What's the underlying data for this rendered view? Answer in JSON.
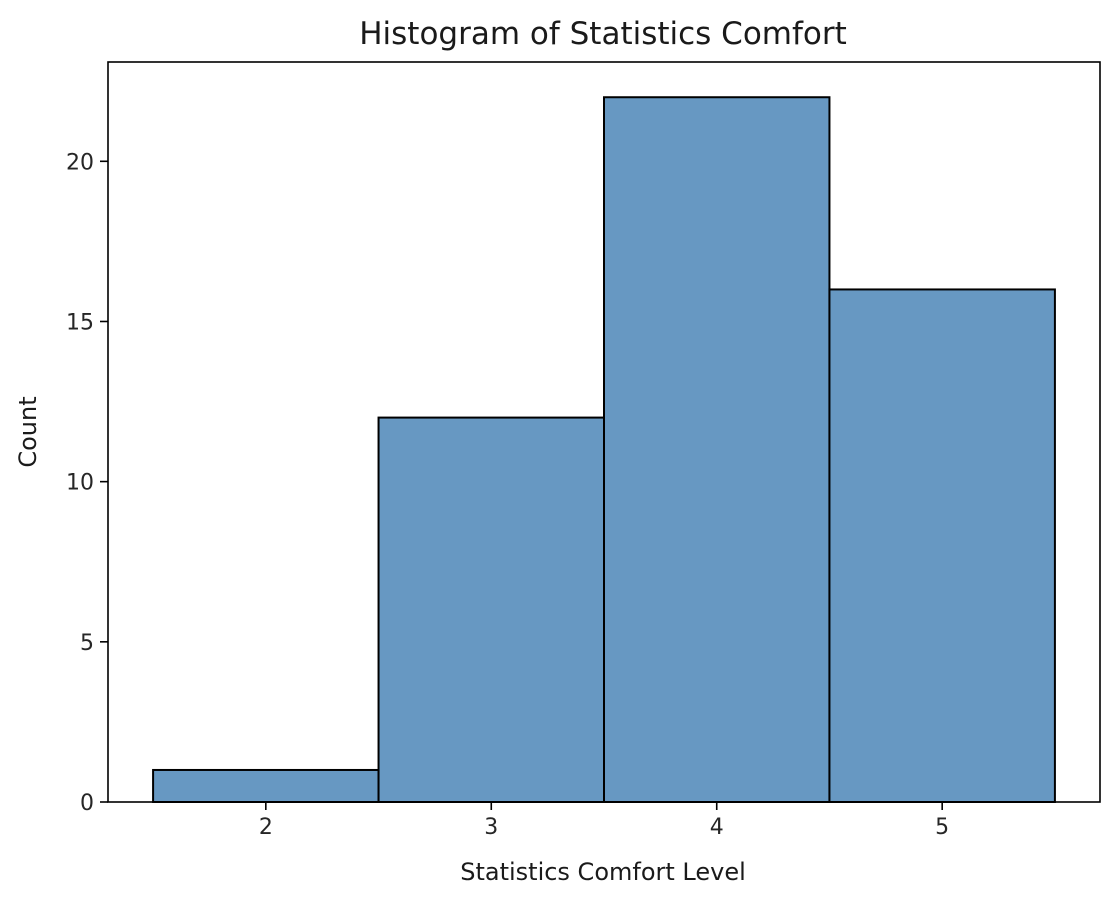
{
  "chart_data": {
    "type": "bar",
    "title": "Histogram of Statistics Comfort",
    "xlabel": "Statistics Comfort Level",
    "ylabel": "Count",
    "categories": [
      "2",
      "3",
      "4",
      "5"
    ],
    "bins": [
      [
        1.5,
        2.5
      ],
      [
        2.5,
        3.5
      ],
      [
        3.5,
        4.5
      ],
      [
        4.5,
        5.5
      ]
    ],
    "values": [
      1,
      12,
      22,
      16
    ],
    "xlim": [
      1.3,
      5.7
    ],
    "ylim": [
      0,
      23.1
    ],
    "xticks": [
      2,
      3,
      4,
      5
    ],
    "yticks": [
      0,
      5,
      10,
      15,
      20
    ],
    "grid": false,
    "colors": {
      "bar_fill": "#6798c2",
      "bar_edge": "#000000",
      "axes": "#000000"
    }
  }
}
